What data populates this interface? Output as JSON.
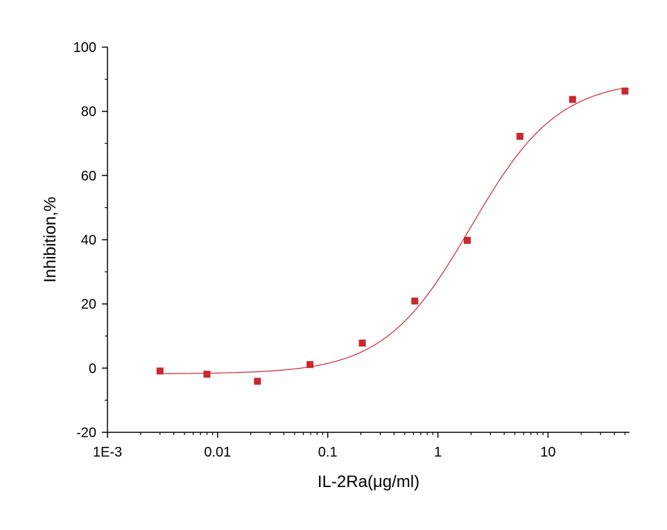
{
  "chart_data": {
    "type": "scatter",
    "title": "",
    "xlabel": "IL-2Ra(μg/ml)",
    "ylabel": "Inhibition,%",
    "x_scale": "log",
    "xlim": [
      0.001,
      55
    ],
    "ylim": [
      -20,
      100
    ],
    "x_ticks": [
      {
        "value": 0.001,
        "label": "1E-3"
      },
      {
        "value": 0.01,
        "label": "0.01"
      },
      {
        "value": 0.1,
        "label": "0.1"
      },
      {
        "value": 1,
        "label": "1"
      },
      {
        "value": 10,
        "label": "10"
      }
    ],
    "y_ticks": [
      {
        "value": -20,
        "label": "-20"
      },
      {
        "value": 0,
        "label": "0"
      },
      {
        "value": 20,
        "label": "20"
      },
      {
        "value": 40,
        "label": "40"
      },
      {
        "value": 60,
        "label": "60"
      },
      {
        "value": 80,
        "label": "80"
      },
      {
        "value": 100,
        "label": "100"
      }
    ],
    "grid": false,
    "legend": "none",
    "series": [
      {
        "kind": "points",
        "color": "#c8282e",
        "marker": "square",
        "x": [
          0.003,
          0.008,
          0.023,
          0.069,
          0.206,
          0.617,
          1.85,
          5.56,
          16.7,
          50
        ],
        "y": [
          -0.9,
          -1.9,
          -4.1,
          1.1,
          7.8,
          20.9,
          39.8,
          72.2,
          83.7,
          86.3
        ]
      },
      {
        "kind": "fit",
        "color": "#c8282e",
        "model": "4PL",
        "bottom": -1.8,
        "top": 89.9,
        "ec50": 2.0,
        "hill": 1.1,
        "x_range": [
          0.003,
          50
        ]
      }
    ]
  }
}
